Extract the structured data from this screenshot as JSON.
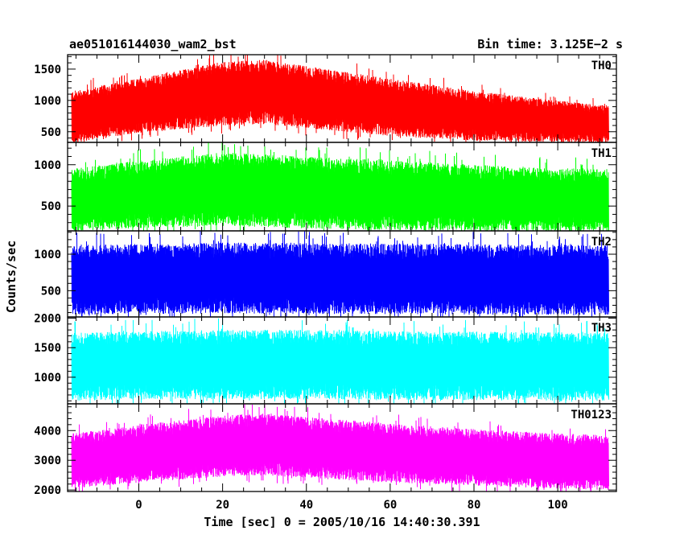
{
  "header": {
    "left_title": "ae051016144030_wam2_bst",
    "right_title": "Bin time: 3.125E−2 s"
  },
  "chart_data": {
    "type": "line",
    "title": "ae051016144030_wam2_bst",
    "subtitle": "Bin time: 3.125E−2 s",
    "xlabel": "Time [sec] 0 = 2005/10/16 14:40:30.391",
    "ylabel": "Counts/sec",
    "xlim": [
      -17,
      114
    ],
    "x_data_range": [
      -16,
      112
    ],
    "bin_time_s": 0.03125,
    "x_ticks": [
      0,
      20,
      40,
      60,
      80,
      100
    ],
    "grid": false,
    "legend": "none",
    "panels": [
      {
        "name": "TH0",
        "color": "#ff0000",
        "ylim": [
          330,
          1730
        ],
        "y_ticks": [
          500,
          1000,
          1500
        ],
        "envelope": {
          "x": [
            -16,
            0,
            20,
            30,
            40,
            60,
            80,
            100,
            112
          ],
          "upper": [
            1150,
            1350,
            1620,
            1650,
            1550,
            1350,
            1150,
            1000,
            920
          ],
          "lower": [
            320,
            480,
            600,
            620,
            560,
            430,
            360,
            330,
            320
          ]
        }
      },
      {
        "name": "TH1",
        "color": "#00ff00",
        "ylim": [
          200,
          1270
        ],
        "y_ticks": [
          500,
          1000
        ],
        "envelope": {
          "x": [
            -16,
            0,
            20,
            40,
            60,
            80,
            100,
            112
          ],
          "upper": [
            950,
            1050,
            1150,
            1100,
            1050,
            1000,
            960,
            950
          ],
          "lower": [
            200,
            230,
            260,
            230,
            210,
            200,
            200,
            200
          ]
        }
      },
      {
        "name": "TH2",
        "color": "#0000ff",
        "ylim": [
          140,
          1320
        ],
        "y_ticks": [
          500,
          1000
        ],
        "envelope": {
          "x": [
            -16,
            0,
            20,
            40,
            60,
            80,
            100,
            112
          ],
          "upper": [
            1130,
            1140,
            1160,
            1150,
            1150,
            1140,
            1130,
            1120
          ],
          "lower": [
            170,
            180,
            190,
            180,
            180,
            170,
            170,
            170
          ]
        }
      },
      {
        "name": "TH3",
        "color": "#00ffff",
        "ylim": [
          550,
          2020
        ],
        "y_ticks": [
          1000,
          1500,
          2000
        ],
        "envelope": {
          "x": [
            -16,
            0,
            20,
            40,
            60,
            80,
            100,
            112
          ],
          "upper": [
            1750,
            1780,
            1800,
            1800,
            1780,
            1770,
            1760,
            1750
          ],
          "lower": [
            600,
            620,
            630,
            630,
            620,
            610,
            600,
            600
          ]
        }
      },
      {
        "name": "TH0123",
        "color": "#ff00ff",
        "ylim": [
          1950,
          4900
        ],
        "y_ticks": [
          2000,
          3000,
          4000
        ],
        "envelope": {
          "x": [
            -16,
            0,
            20,
            30,
            40,
            60,
            80,
            100,
            112
          ],
          "upper": [
            3900,
            4200,
            4500,
            4600,
            4450,
            4250,
            4050,
            3900,
            3850
          ],
          "lower": [
            2050,
            2250,
            2450,
            2500,
            2400,
            2250,
            2150,
            2050,
            2000
          ]
        }
      }
    ]
  }
}
